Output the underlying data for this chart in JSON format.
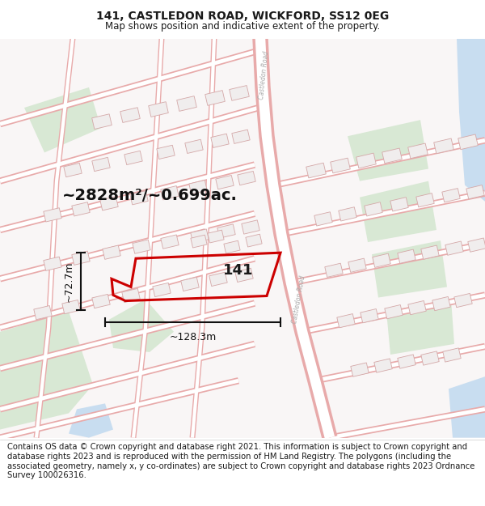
{
  "title": "141, CASTLEDON ROAD, WICKFORD, SS12 0EG",
  "subtitle": "Map shows position and indicative extent of the property.",
  "title_fontsize": 10,
  "subtitle_fontsize": 8.5,
  "footer_text": "Contains OS data © Crown copyright and database right 2021. This information is subject to Crown copyright and database rights 2023 and is reproduced with the permission of HM Land Registry. The polygons (including the associated geometry, namely x, y co-ordinates) are subject to Crown copyright and database rights 2023 Ordnance Survey 100026316.",
  "footer_fontsize": 7.2,
  "area_label": "~2828m²/~0.699ac.",
  "property_number": "141",
  "dim_width": "~128.3m",
  "dim_height": "~72.7m",
  "map_bg": "#f9f6f6",
  "road_fill": "#ffffff",
  "road_edge": "#e8aaaa",
  "green_color": "#d8e8d4",
  "blue_water": "#c8ddf0",
  "property_color": "#cc0000",
  "dim_color": "#111111",
  "building_fill": "#f0eded",
  "building_edge": "#d4a8a8",
  "castledon_road_label": "Castledon Road",
  "road_label_color": "#aaaaaa"
}
